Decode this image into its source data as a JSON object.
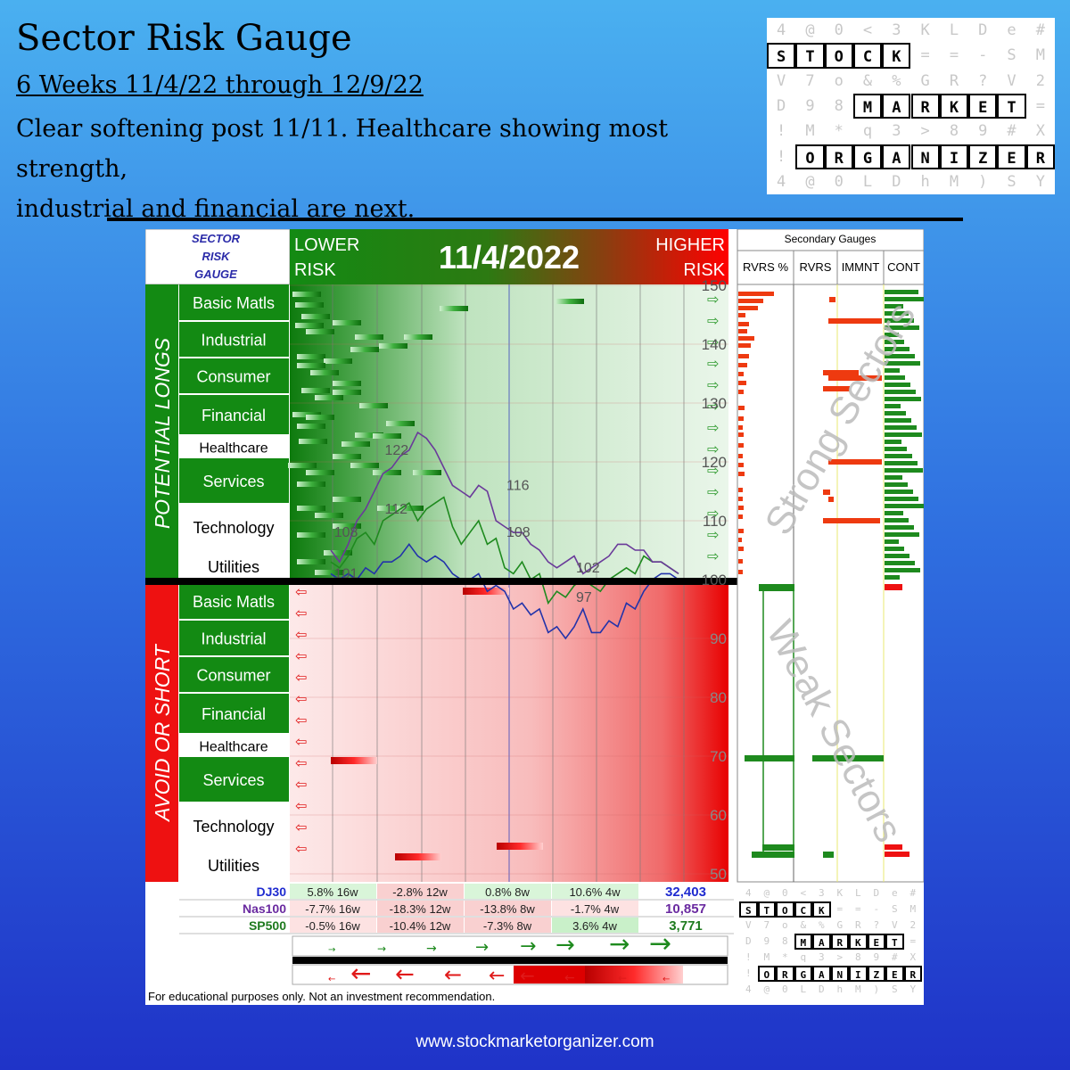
{
  "header": {
    "title": "Sector Risk Gauge",
    "subtitle": "6 Weeks 11/4/22 through 12/9/22",
    "desc_line1": "Clear softening post 11/11.  Healthcare showing most strength,",
    "desc_line2": "industrial and financial are next."
  },
  "logo": {
    "grid": [
      [
        "4",
        "@",
        "0",
        "<",
        "3",
        "K",
        "L",
        "D",
        "e",
        "#"
      ],
      [
        "S",
        "T",
        "O",
        "C",
        "K",
        "=",
        "=",
        "-",
        "S",
        "M"
      ],
      [
        "V",
        "7",
        "o",
        "&",
        "%",
        "G",
        "R",
        "?",
        "V",
        "2"
      ],
      [
        "D",
        "9",
        "8",
        "M",
        "A",
        "R",
        "K",
        "E",
        "T",
        "="
      ],
      [
        "!",
        "M",
        "*",
        "q",
        "3",
        ">",
        "8",
        "9",
        "#",
        "X"
      ],
      [
        "!",
        "O",
        "R",
        "G",
        "A",
        "N",
        "I",
        "Z",
        "E",
        "R"
      ],
      [
        "4",
        "@",
        "0",
        "L",
        "D",
        "h",
        "M",
        ")",
        "S",
        "Y"
      ]
    ],
    "highlights": [
      [
        1,
        0,
        5
      ],
      [
        3,
        3,
        9
      ],
      [
        5,
        1,
        10
      ]
    ]
  },
  "gauge": {
    "corner_label_1": "SECTOR",
    "corner_label_2": "RISK",
    "corner_label_3": "GAUGE",
    "lower_risk_1": "LOWER",
    "lower_risk_2": "RISK",
    "higher_risk_1": "HIGHER",
    "higher_risk_2": "RISK",
    "date": "11/4/2022",
    "secondary_title": "Secondary Gauges",
    "secondary_cols": [
      "RVRS %",
      "RVRS",
      "IMMNT",
      "CONT"
    ],
    "longs_label": "POTENTIAL LONGS",
    "shorts_label": "AVOID OR SHORT",
    "strong_label": "Strong Sectors",
    "weak_label": "Weak Sectors",
    "sectors": [
      "Basic Matls",
      "Industrial",
      "Consumer",
      "Financial",
      "Healthcare",
      "Services",
      "Technology",
      "Utilities"
    ],
    "disclaimer": "For educational purposes only.  Not an investment recommendation.",
    "colors": {
      "green": "#1e8a1e",
      "red": "#ee1111",
      "blue": "#2233aa",
      "purple": "#6a3a9a"
    }
  },
  "chart_data": {
    "type": "line",
    "ylim": [
      50,
      150
    ],
    "yticks": [
      50,
      60,
      70,
      80,
      90,
      100,
      110,
      120,
      130,
      140,
      150
    ],
    "series": [
      {
        "values": [
          101,
          100,
          101,
          100,
          102,
          101,
          103,
          103,
          104,
          106,
          104,
          103,
          104,
          103,
          101,
          100,
          100,
          101,
          98,
          99,
          98,
          95,
          96,
          94,
          95,
          91,
          92,
          90,
          92,
          95,
          91,
          91,
          93,
          92,
          96,
          95,
          98,
          100,
          101,
          101,
          100
        ]
      },
      {
        "values": [
          103,
          102,
          104,
          107,
          108,
          106,
          110,
          111,
          112,
          113,
          110,
          112,
          113,
          114,
          109,
          106,
          108,
          110,
          106,
          107,
          102,
          101,
          103,
          100,
          101,
          96,
          98,
          97,
          99,
          100,
          99,
          98,
          100,
          101,
          102,
          101,
          104,
          103,
          103,
          102,
          101
        ]
      },
      {
        "values": [
          105,
          103,
          106,
          110,
          112,
          115,
          118,
          119,
          121,
          122,
          125,
          124,
          122,
          119,
          116,
          115,
          114,
          116,
          115,
          110,
          109,
          108,
          108,
          106,
          105,
          103,
          102,
          103,
          104,
          101,
          102,
          103,
          104,
          106,
          106,
          105,
          105,
          103,
          103,
          102,
          101
        ]
      }
    ],
    "annotations": [
      {
        "text": "101",
        "x": 1,
        "y": 101
      },
      {
        "text": "108",
        "x": 1,
        "y": 108
      },
      {
        "text": "112",
        "x": 6,
        "y": 112
      },
      {
        "text": "122",
        "x": 6,
        "y": 122
      },
      {
        "text": "108",
        "x": 20,
        "y": 108
      },
      {
        "text": "116",
        "x": 20,
        "y": 116
      },
      {
        "text": "102",
        "x": 28,
        "y": 102
      },
      {
        "text": "97",
        "x": 28,
        "y": 97
      }
    ]
  },
  "index_table": {
    "rows": [
      {
        "name": "DJ30",
        "cells": [
          "5.8% 16w",
          "-2.8% 12w",
          "0.8% 8w",
          "10.6% 4w"
        ],
        "value": "32,403",
        "color": "#1f2bd0"
      },
      {
        "name": "Nas100",
        "cells": [
          "-7.7% 16w",
          "-18.3% 12w",
          "-13.8% 8w",
          "-1.7% 4w"
        ],
        "value": "10,857",
        "color": "#6a2aa0"
      },
      {
        "name": "SP500",
        "cells": [
          "-0.5% 16w",
          "-10.4% 12w",
          "-7.3% 8w",
          "3.6% 4w"
        ],
        "value": "3,771",
        "color": "#1e7a1e"
      }
    ]
  },
  "footer": {
    "url": "www.stockmarketorganizer.com"
  }
}
